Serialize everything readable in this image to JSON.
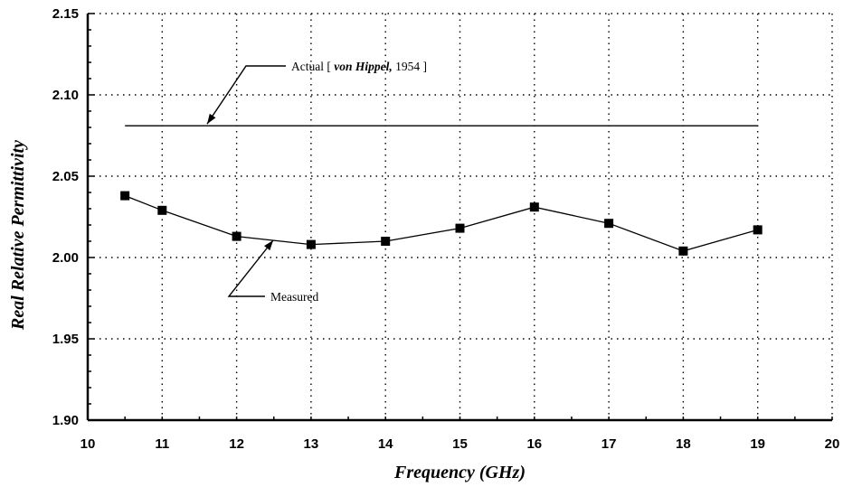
{
  "chart_data": {
    "type": "line",
    "title": "",
    "xlabel": "Frequency (GHz)",
    "ylabel": "Real Relative Permittivity",
    "xlim": [
      10,
      20
    ],
    "ylim": [
      1.9,
      2.15
    ],
    "x_ticks": [
      "10",
      "11",
      "12",
      "13",
      "14",
      "15",
      "16",
      "17",
      "18",
      "19",
      "20"
    ],
    "y_ticks": [
      "1.90",
      "1.95",
      "2.00",
      "2.05",
      "2.10",
      "2.15"
    ],
    "grid": true,
    "series": [
      {
        "name": "Measured",
        "marker": "square",
        "color": "#000000",
        "x": [
          10.5,
          11,
          12,
          13,
          14,
          15,
          16,
          17,
          18,
          19
        ],
        "y": [
          2.038,
          2.029,
          2.013,
          2.008,
          2.01,
          2.018,
          2.031,
          2.021,
          2.004,
          2.017
        ]
      },
      {
        "name": "Actual",
        "marker": "none",
        "color": "#000000",
        "x": [
          10.5,
          19
        ],
        "y": [
          2.081,
          2.081
        ]
      }
    ],
    "annotations": {
      "actual": {
        "prefix": "Actual [ ",
        "italic": "von Hippel,",
        "suffix": " 1954 ]"
      },
      "measured": {
        "text": "Measured"
      }
    }
  }
}
